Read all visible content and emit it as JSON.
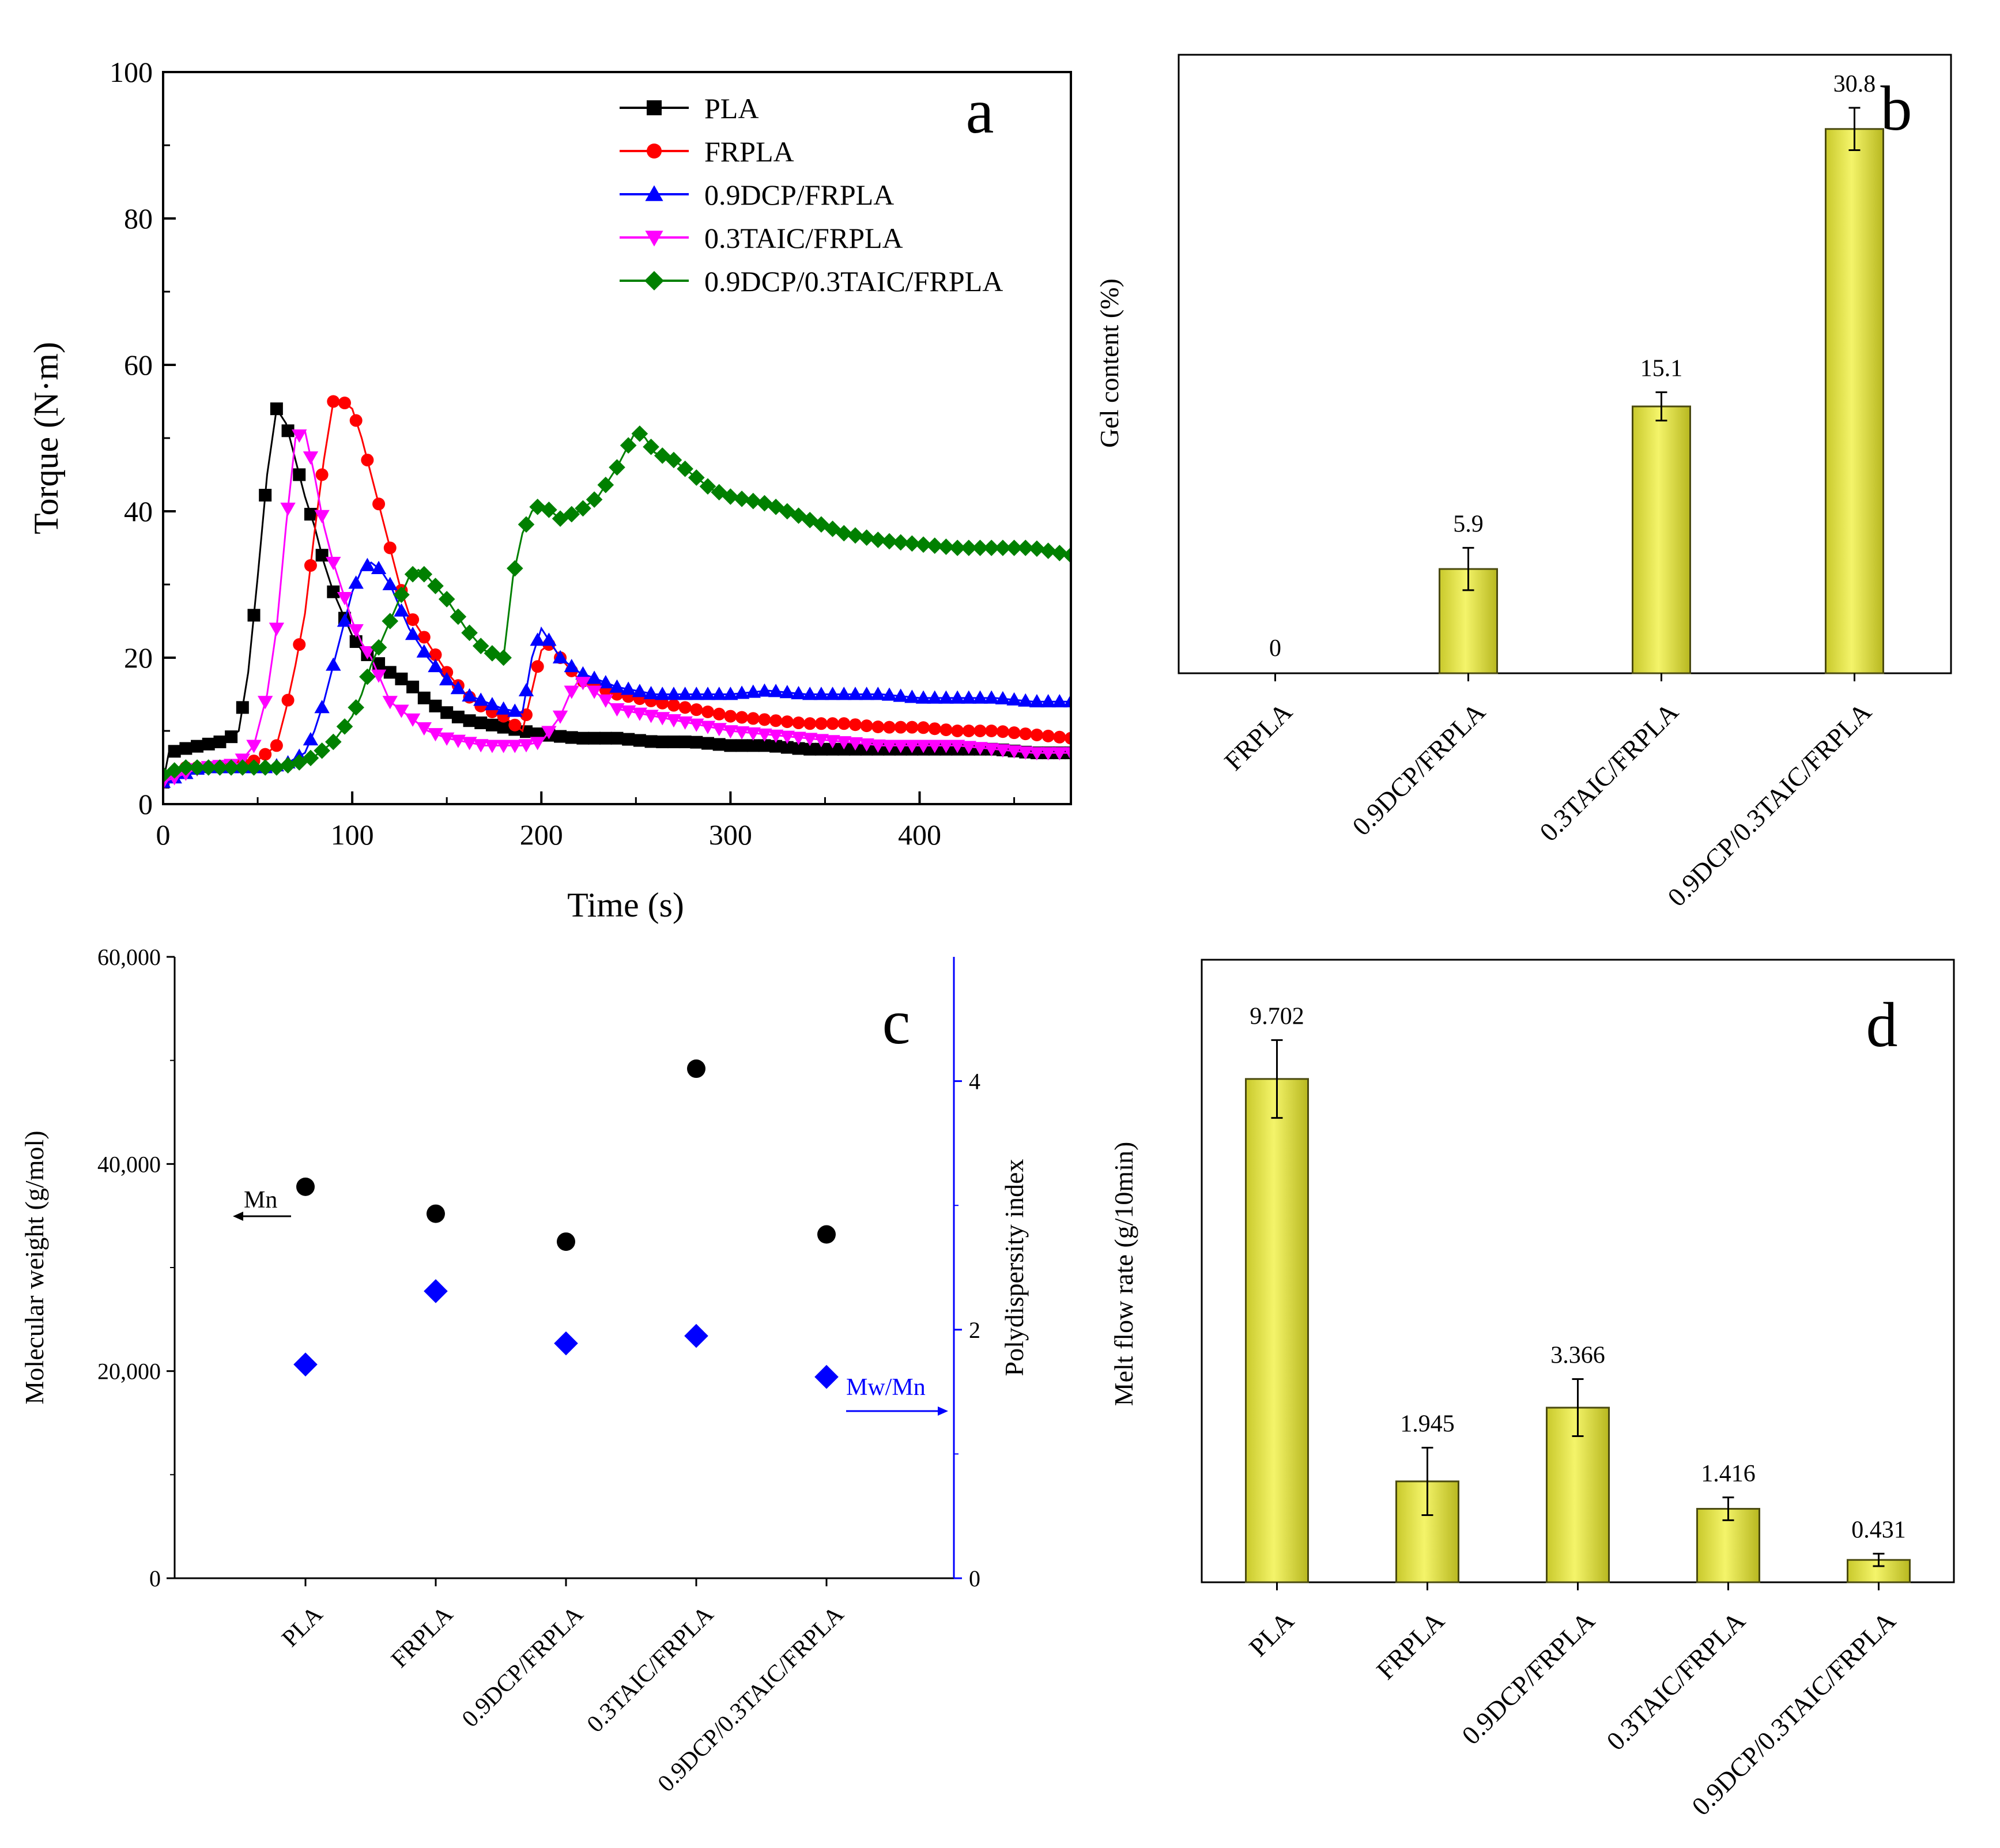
{
  "chart_data": [
    {
      "type": "line",
      "panel_letter": "a",
      "xlabel": "Time (s)",
      "ylabel": "Torque (N·m)",
      "xlim": [
        0,
        480
      ],
      "ylim": [
        0,
        100
      ],
      "xticks": [
        "0",
        "100",
        "200",
        "300",
        "400"
      ],
      "yticks": [
        "0",
        "20",
        "40",
        "60",
        "80",
        "100"
      ],
      "series": [
        {
          "name": "PLA",
          "color": "#000000",
          "marker": "square",
          "points": [
            [
              0,
              3
            ],
            [
              3,
              7
            ],
            [
              10,
              7.5
            ],
            [
              20,
              8
            ],
            [
              30,
              8.5
            ],
            [
              35,
              9
            ],
            [
              40,
              10
            ],
            [
              45,
              18
            ],
            [
              50,
              31
            ],
            [
              55,
              45
            ],
            [
              60,
              54
            ],
            [
              65,
              52
            ],
            [
              70,
              47
            ],
            [
              75,
              42
            ],
            [
              80,
              38
            ],
            [
              85,
              33
            ],
            [
              90,
              29
            ],
            [
              95,
              26
            ],
            [
              100,
              23
            ],
            [
              105,
              21
            ],
            [
              110,
              20
            ],
            [
              115,
              19
            ],
            [
              120,
              18
            ],
            [
              130,
              16.5
            ],
            [
              140,
              14
            ],
            [
              150,
              12.5
            ],
            [
              160,
              11.5
            ],
            [
              170,
              11
            ],
            [
              180,
              10.5
            ],
            [
              190,
              10
            ],
            [
              200,
              9.5
            ],
            [
              220,
              9
            ],
            [
              240,
              9
            ],
            [
              260,
              8.5
            ],
            [
              280,
              8.5
            ],
            [
              300,
              8
            ],
            [
              320,
              8
            ],
            [
              340,
              7.5
            ],
            [
              360,
              7.5
            ],
            [
              380,
              7.5
            ],
            [
              400,
              7.5
            ],
            [
              420,
              7.5
            ],
            [
              440,
              7.5
            ],
            [
              460,
              7
            ],
            [
              480,
              7
            ]
          ]
        },
        {
          "name": "FRPLA",
          "color": "#ff0000",
          "marker": "circle",
          "points": [
            [
              0,
              3
            ],
            [
              10,
              5
            ],
            [
              20,
              5
            ],
            [
              30,
              5
            ],
            [
              40,
              5.5
            ],
            [
              50,
              6
            ],
            [
              55,
              7
            ],
            [
              60,
              8
            ],
            [
              65,
              13
            ],
            [
              70,
              19
            ],
            [
              75,
              26
            ],
            [
              80,
              37
            ],
            [
              85,
              47
            ],
            [
              90,
              55
            ],
            [
              95,
              55
            ],
            [
              100,
              54
            ],
            [
              105,
              50
            ],
            [
              110,
              45
            ],
            [
              115,
              40
            ],
            [
              120,
              35
            ],
            [
              125,
              30
            ],
            [
              130,
              26
            ],
            [
              140,
              22
            ],
            [
              150,
              18
            ],
            [
              160,
              15
            ],
            [
              170,
              13
            ],
            [
              180,
              12
            ],
            [
              190,
              10
            ],
            [
              200,
              21
            ],
            [
              205,
              22
            ],
            [
              210,
              20
            ],
            [
              220,
              17
            ],
            [
              240,
              15
            ],
            [
              260,
              14
            ],
            [
              280,
              13
            ],
            [
              300,
              12
            ],
            [
              320,
              11.5
            ],
            [
              340,
              11
            ],
            [
              360,
              11
            ],
            [
              380,
              10.5
            ],
            [
              400,
              10.5
            ],
            [
              420,
              10
            ],
            [
              440,
              10
            ],
            [
              460,
              9.5
            ],
            [
              480,
              9
            ]
          ]
        },
        {
          "name": "0.9DCP/FRPLA",
          "color": "#0000ff",
          "marker": "triangle-up",
          "points": [
            [
              0,
              3
            ],
            [
              20,
              5
            ],
            [
              40,
              5
            ],
            [
              55,
              5
            ],
            [
              65,
              5.5
            ],
            [
              75,
              7
            ],
            [
              80,
              10
            ],
            [
              85,
              14
            ],
            [
              90,
              19
            ],
            [
              95,
              24
            ],
            [
              100,
              29
            ],
            [
              105,
              32
            ],
            [
              110,
              33
            ],
            [
              115,
              32
            ],
            [
              120,
              30
            ],
            [
              125,
              27
            ],
            [
              130,
              24
            ],
            [
              140,
              20
            ],
            [
              150,
              17
            ],
            [
              160,
              15
            ],
            [
              170,
              14
            ],
            [
              180,
              13
            ],
            [
              190,
              12.5
            ],
            [
              195,
              20
            ],
            [
              200,
              24
            ],
            [
              205,
              22
            ],
            [
              210,
              20
            ],
            [
              220,
              18
            ],
            [
              240,
              16
            ],
            [
              260,
              15
            ],
            [
              280,
              15
            ],
            [
              300,
              15
            ],
            [
              320,
              15.5
            ],
            [
              340,
              15
            ],
            [
              360,
              15
            ],
            [
              380,
              15
            ],
            [
              400,
              14.5
            ],
            [
              420,
              14.5
            ],
            [
              440,
              14.5
            ],
            [
              460,
              14
            ],
            [
              480,
              14
            ]
          ]
        },
        {
          "name": "0.3TAIC/FRPLA",
          "color": "#ff00ff",
          "marker": "triangle-down",
          "points": [
            [
              0,
              3
            ],
            [
              20,
              5
            ],
            [
              40,
              5.5
            ],
            [
              48,
              8
            ],
            [
              55,
              15
            ],
            [
              60,
              24
            ],
            [
              65,
              38
            ],
            [
              70,
              50
            ],
            [
              75,
              51
            ],
            [
              80,
              45
            ],
            [
              85,
              38
            ],
            [
              90,
              33
            ],
            [
              95,
              29
            ],
            [
              100,
              25
            ],
            [
              105,
              22
            ],
            [
              110,
              20
            ],
            [
              115,
              17
            ],
            [
              120,
              14
            ],
            [
              130,
              12
            ],
            [
              140,
              10
            ],
            [
              150,
              9
            ],
            [
              160,
              8.5
            ],
            [
              170,
              8
            ],
            [
              180,
              8
            ],
            [
              190,
              8
            ],
            [
              200,
              8.5
            ],
            [
              210,
              12
            ],
            [
              215,
              15
            ],
            [
              220,
              17
            ],
            [
              230,
              15
            ],
            [
              240,
              13
            ],
            [
              260,
              12
            ],
            [
              280,
              11
            ],
            [
              300,
              10
            ],
            [
              320,
              9.5
            ],
            [
              340,
              9
            ],
            [
              360,
              8.5
            ],
            [
              380,
              8
            ],
            [
              400,
              8
            ],
            [
              420,
              8
            ],
            [
              440,
              7.5
            ],
            [
              460,
              7
            ],
            [
              480,
              7
            ]
          ]
        },
        {
          "name": "0.9DCP/0.3TAIC/FRPLA",
          "color": "#008000",
          "marker": "diamond",
          "points": [
            [
              0,
              4
            ],
            [
              10,
              5
            ],
            [
              20,
              5
            ],
            [
              30,
              5
            ],
            [
              40,
              5
            ],
            [
              50,
              5
            ],
            [
              60,
              5
            ],
            [
              70,
              5.5
            ],
            [
              80,
              6.5
            ],
            [
              90,
              8.5
            ],
            [
              100,
              12
            ],
            [
              105,
              15
            ],
            [
              110,
              19
            ],
            [
              115,
              22
            ],
            [
              120,
              25
            ],
            [
              125,
              28
            ],
            [
              130,
              31
            ],
            [
              135,
              32
            ],
            [
              140,
              31
            ],
            [
              150,
              28
            ],
            [
              160,
              24
            ],
            [
              170,
              21
            ],
            [
              180,
              20
            ],
            [
              185,
              31
            ],
            [
              190,
              37
            ],
            [
              195,
              40
            ],
            [
              200,
              41
            ],
            [
              205,
              40
            ],
            [
              210,
              39
            ],
            [
              220,
              40
            ],
            [
              230,
              42
            ],
            [
              240,
              46
            ],
            [
              250,
              51
            ],
            [
              255,
              50
            ],
            [
              260,
              48
            ],
            [
              270,
              47
            ],
            [
              280,
              45
            ],
            [
              290,
              43
            ],
            [
              300,
              42
            ],
            [
              320,
              41
            ],
            [
              340,
              39
            ],
            [
              360,
              37
            ],
            [
              380,
              36
            ],
            [
              400,
              35.5
            ],
            [
              420,
              35
            ],
            [
              440,
              35
            ],
            [
              460,
              35
            ],
            [
              480,
              34
            ]
          ]
        }
      ]
    },
    {
      "type": "bar",
      "panel_letter": "b",
      "ylabel": "Gel content (%)",
      "ylim": [
        0,
        35
      ],
      "categories": [
        "FRPLA",
        "0.9DCP/FRPLA",
        "0.3TAIC/FRPLA",
        "0.9DCP/0.3TAIC/FRPLA"
      ],
      "values": [
        0,
        5.9,
        15.1,
        30.8
      ],
      "value_labels": [
        "0",
        "5.9",
        "15.1",
        "30.8"
      ],
      "errors": [
        0,
        1.2,
        0.8,
        1.2
      ],
      "bar_color": "#e8e84a"
    },
    {
      "type": "scatter",
      "panel_letter": "c",
      "ylabel": "Molecular weight (g/mol)",
      "y2label": "Polydispersity index",
      "ylim": [
        0,
        60000
      ],
      "y2lim": [
        0,
        5
      ],
      "yticks": [
        "0",
        "20,000",
        "40,000",
        "60,000"
      ],
      "y2ticks": [
        "0",
        "2",
        "4"
      ],
      "categories": [
        "PLA",
        "FRPLA",
        "0.9DCP/FRPLA",
        "0.3TAIC/FRPLA",
        "0.9DCP/0.3TAIC/FRPLA"
      ],
      "series": [
        {
          "name": "Mn",
          "axis": "left",
          "color": "#000000",
          "marker": "circle",
          "values": [
            37800,
            35200,
            32500,
            49200,
            33200
          ]
        },
        {
          "name": "Mw/Mn",
          "axis": "right",
          "color": "#0000ff",
          "marker": "diamond",
          "values": [
            1.72,
            2.31,
            1.89,
            1.95,
            1.62
          ]
        }
      ]
    },
    {
      "type": "bar",
      "panel_letter": "d",
      "ylabel": "Melt flow rate (g/10min)",
      "ylim": [
        0,
        12
      ],
      "categories": [
        "PLA",
        "FRPLA",
        "0.9DCP/FRPLA",
        "0.3TAIC/FRPLA",
        "0.9DCP/0.3TAIC/FRPLA"
      ],
      "values": [
        9.702,
        1.945,
        3.366,
        1.416,
        0.431
      ],
      "value_labels": [
        "9.702",
        "1.945",
        "3.366",
        "1.416",
        "0.431"
      ],
      "errors": [
        0.75,
        0.65,
        0.55,
        0.22,
        0.12
      ],
      "bar_color": "#e8e84a"
    }
  ]
}
